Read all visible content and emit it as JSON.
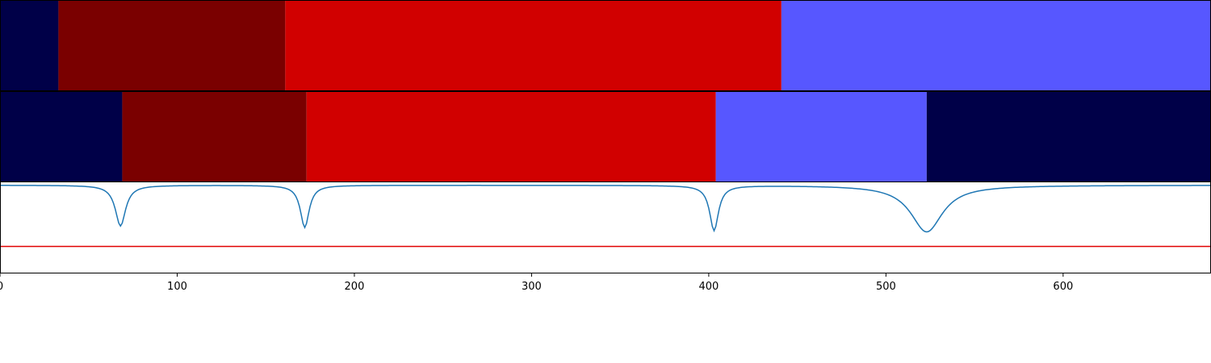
{
  "chart_data": [
    {
      "type": "segments",
      "xlim": [
        0,
        683
      ],
      "segments": [
        {
          "start": 0,
          "end": 33,
          "color": "#000048"
        },
        {
          "start": 33,
          "end": 161,
          "color": "#7a0000"
        },
        {
          "start": 161,
          "end": 441,
          "color": "#d10000"
        },
        {
          "start": 441,
          "end": 683,
          "color": "#5757ff"
        }
      ]
    },
    {
      "type": "segments",
      "xlim": [
        0,
        683
      ],
      "segments": [
        {
          "start": 0,
          "end": 69,
          "color": "#000048"
        },
        {
          "start": 69,
          "end": 173,
          "color": "#7a0000"
        },
        {
          "start": 173,
          "end": 404,
          "color": "#d10000"
        },
        {
          "start": 404,
          "end": 523,
          "color": "#5757ff"
        },
        {
          "start": 523,
          "end": 683,
          "color": "#000048"
        }
      ]
    },
    {
      "type": "line",
      "xlim": [
        0,
        683
      ],
      "ylim": [
        -0.6,
        0.02
      ],
      "threshold": -0.42,
      "threshold_color": "#e00000",
      "line_color": "#1f77b4",
      "dips": [
        {
          "center": 68,
          "depth": 0.28,
          "width": 3.5
        },
        {
          "center": 172,
          "depth": 0.29,
          "width": 3.0
        },
        {
          "center": 403,
          "depth": 0.31,
          "width": 3.0
        },
        {
          "center": 523,
          "depth": 0.32,
          "width": 11.0
        }
      ],
      "xticks": [
        0,
        100,
        200,
        300,
        400,
        500,
        600
      ]
    }
  ]
}
